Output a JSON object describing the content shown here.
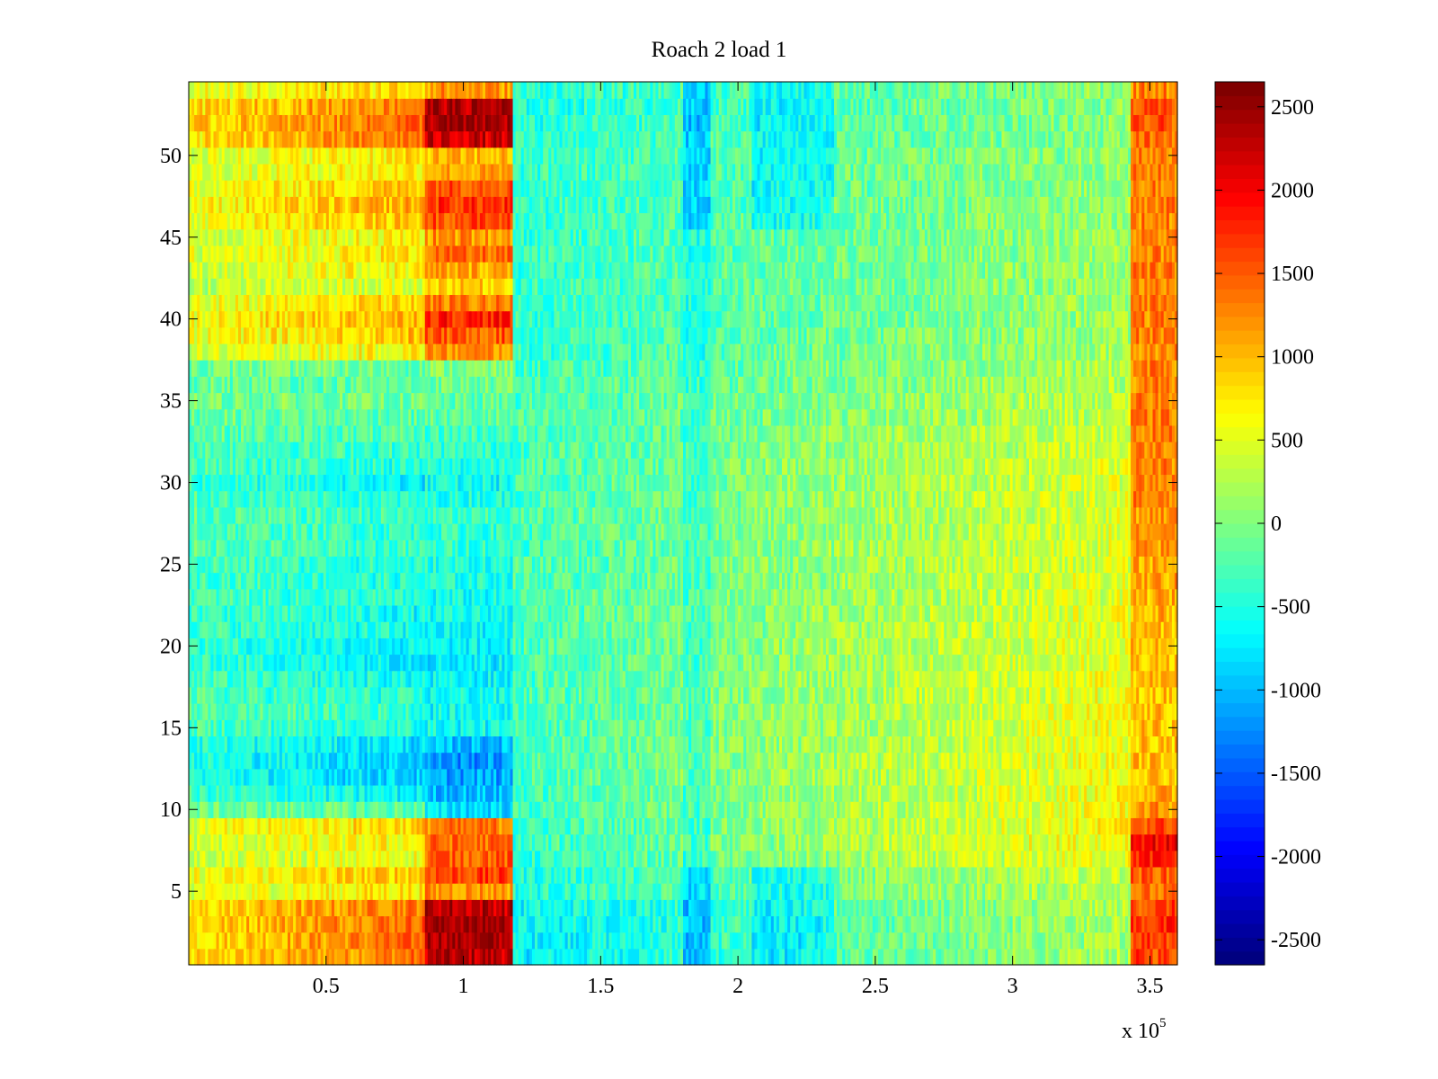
{
  "chart_data": {
    "type": "heatmap",
    "title": "Roach 2 load 1",
    "x_multiplier_label": {
      "prefix": "x 10",
      "exponent": "5"
    },
    "x_tick_labels": [
      "0.5",
      "1",
      "1.5",
      "2",
      "2.5",
      "3",
      "3.5"
    ],
    "x_ticks": [
      0.5,
      1,
      1.5,
      2,
      2.5,
      3,
      3.5
    ],
    "xlim": [
      0,
      3.6
    ],
    "y_tick_labels": [
      "5",
      "10",
      "15",
      "20",
      "25",
      "30",
      "35",
      "40",
      "45",
      "50"
    ],
    "y_ticks": [
      5,
      10,
      15,
      20,
      25,
      30,
      35,
      40,
      45,
      50
    ],
    "ylim": [
      0.5,
      54.5
    ],
    "rows": 54,
    "colormap": "jet",
    "colorbar": {
      "tick_labels": [
        "2500",
        "2000",
        "1500",
        "1000",
        "500",
        "0",
        "-500",
        "-1000",
        "-1500",
        "-2000",
        "-2500"
      ],
      "ticks": [
        2500,
        2000,
        1500,
        1000,
        500,
        0,
        -500,
        -1000,
        -1500,
        -2000,
        -2500
      ],
      "range": [
        -2650,
        2650
      ],
      "levels": 64
    },
    "segments": [
      {
        "x_start": 0.0,
        "x_end": 0.86,
        "note": "rows 1-5 and 6-9 warm, 10-14 cool, 15-37 near 0, 38-53 warm"
      },
      {
        "x_start": 0.86,
        "x_end": 1.18,
        "note": "hot burst"
      },
      {
        "x_start": 1.18,
        "x_end": 3.43,
        "note": "near 0, drifting warmer to the right"
      },
      {
        "x_start": 3.43,
        "x_end": 3.6,
        "note": "warm edge"
      }
    ],
    "row_profile": {
      "left": [
        1400,
        1450,
        1500,
        1400,
        800,
        1000,
        600,
        700,
        900,
        -200,
        -700,
        -900,
        -900,
        -800,
        -500,
        -400,
        -500,
        -600,
        -700,
        -700,
        -600,
        -600,
        -500,
        -500,
        -500,
        -400,
        -400,
        -400,
        -500,
        -700,
        -500,
        -400,
        -300,
        -200,
        -100,
        -200,
        -100,
        700,
        1000,
        1100,
        900,
        500,
        700,
        800,
        700,
        1000,
        1100,
        1000,
        800,
        800,
        1400,
        1500,
        1400,
        900
      ],
      "burst": [
        2300,
        2400,
        2450,
        2300,
        1200,
        1600,
        1500,
        1400,
        1300,
        -800,
        -1000,
        -1100,
        -1200,
        -1000,
        -600,
        -600,
        -600,
        -700,
        -700,
        -700,
        -700,
        -600,
        -600,
        -500,
        -500,
        -400,
        -400,
        -400,
        -500,
        -600,
        -500,
        -400,
        -300,
        -200,
        -200,
        -100,
        0,
        1200,
        1500,
        1800,
        1300,
        900,
        1100,
        1400,
        1200,
        1600,
        1700,
        1600,
        1100,
        1000,
        2200,
        2400,
        2350,
        1200
      ],
      "middle_start": [
        -700,
        -700,
        -700,
        -650,
        -500,
        -500,
        -450,
        -400,
        -400,
        -350,
        -350,
        -300,
        -300,
        -300,
        -300,
        -300,
        -300,
        -300,
        -300,
        -300,
        -300,
        -300,
        -300,
        -300,
        -300,
        -300,
        -300,
        -300,
        -300,
        -300,
        -300,
        -300,
        -300,
        -300,
        -300,
        -300,
        -350,
        -400,
        -400,
        -400,
        -400,
        -400,
        -400,
        -400,
        -400,
        -400,
        -400,
        -400,
        -400,
        -400,
        -450,
        -500,
        -500,
        -450
      ],
      "middle_end": [
        200,
        200,
        250,
        250,
        350,
        400,
        600,
        700,
        700,
        650,
        650,
        650,
        650,
        600,
        600,
        600,
        600,
        600,
        550,
        550,
        550,
        550,
        500,
        500,
        500,
        500,
        500,
        500,
        500,
        500,
        500,
        450,
        400,
        350,
        300,
        250,
        250,
        200,
        150,
        150,
        150,
        150,
        150,
        150,
        150,
        150,
        100,
        100,
        100,
        100,
        50,
        50,
        50,
        50
      ],
      "right_edge": [
        1600,
        1700,
        1700,
        1600,
        1300,
        1500,
        1800,
        2000,
        1600,
        1200,
        1100,
        1000,
        1000,
        950,
        950,
        950,
        950,
        1000,
        1000,
        1000,
        1000,
        1050,
        1050,
        1100,
        1100,
        1150,
        1150,
        1200,
        1250,
        1300,
        1300,
        1300,
        1300,
        1300,
        1300,
        1300,
        1300,
        1300,
        1300,
        1300,
        1300,
        1300,
        1300,
        1300,
        1300,
        1300,
        1300,
        1300,
        1300,
        1300,
        1400,
        1500,
        1500,
        1300
      ],
      "dip_x": [
        1.8,
        1.9
      ],
      "dip_x2": [
        2.05,
        2.35
      ]
    }
  }
}
